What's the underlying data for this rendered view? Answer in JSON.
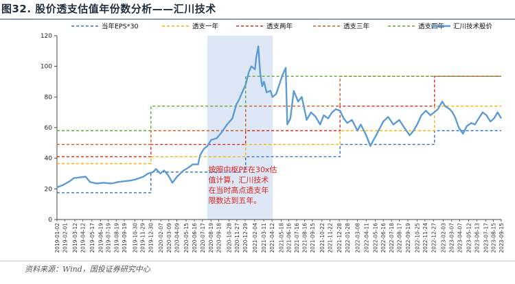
{
  "page": {
    "title": "图32. 股价透支估值年份数分析——汇川技术",
    "source": "资料来源：Wind，国投证券研究中心"
  },
  "chart_data": {
    "type": "line",
    "ylim": [
      0,
      120
    ],
    "yticks": [
      0,
      20,
      40,
      60,
      80,
      100,
      120
    ],
    "xlim": [
      "2019-01-02",
      "2023-09-15"
    ],
    "grid": false,
    "legend_position": "top",
    "xtick_labels": [
      "2019-01-02",
      "2019-02-01",
      "2019-03-12",
      "2019-04-12",
      "2019-05-17",
      "2019-06-19",
      "2019-07-19",
      "2019-08-19",
      "2019-09-19",
      "2019-10-30",
      "2019-11-29",
      "2019-12-30",
      "2020-02-07",
      "2020-03-09",
      "2020-04-09",
      "2020-05-15",
      "2020-06-16",
      "2020-07-17",
      "2020-08-19",
      "2020-09-18",
      "2020-10-28",
      "2020-11-27",
      "2020-12-29",
      "2021-02-04",
      "2021-03-11",
      "2021-04-12",
      "2021-05-18",
      "2021-06-16",
      "2021-07-16",
      "2021-08-16",
      "2021-09-15",
      "2021-10-22",
      "2021-11-22",
      "2021-12-28",
      "2022-01-28",
      "2022-03-08",
      "2022-04-11",
      "2022-05-16",
      "2022-06-16",
      "2022-07-18",
      "2022-08-17",
      "2022-09-19",
      "2022-10-25",
      "2022-11-24",
      "2022-12-27",
      "2023-02-03",
      "2023-03-07",
      "2023-04-07",
      "2023-05-12",
      "2023-06-13",
      "2023-07-17",
      "2023-08-15",
      "2023-09-15"
    ],
    "highlight_region": {
      "start": "2020-08-05",
      "end": "2021-04-15",
      "color": "#dde7f6"
    },
    "annotation": {
      "lines": [
        "按照中枢PE在30x估",
        "值计算，汇川技术",
        "在当时高点透支年",
        "限数达到五年。"
      ],
      "color": "#e0241b"
    },
    "step_series": [
      {
        "name": "当年EPS*30",
        "color": "#2f6fc4",
        "steps": [
          [
            "2019-01-02",
            17.5
          ],
          [
            "2019-12-31",
            17.5
          ],
          [
            "2019-12-31",
            31
          ],
          [
            "2020-12-31",
            31
          ],
          [
            "2020-12-31",
            41
          ],
          [
            "2021-12-31",
            41
          ],
          [
            "2021-12-31",
            49
          ],
          [
            "2022-12-31",
            49
          ],
          [
            "2022-12-31",
            58
          ],
          [
            "2023-09-15",
            58
          ]
        ]
      },
      {
        "name": "透支一年",
        "color": "#f4b400",
        "steps": [
          [
            "2019-01-02",
            36.5
          ],
          [
            "2019-12-31",
            36.5
          ],
          [
            "2019-12-31",
            41
          ],
          [
            "2020-12-31",
            41
          ],
          [
            "2020-12-31",
            49
          ],
          [
            "2021-12-31",
            49
          ],
          [
            "2021-12-31",
            58
          ],
          [
            "2022-12-31",
            58
          ],
          [
            "2022-12-31",
            74
          ],
          [
            "2023-09-15",
            74
          ]
        ]
      },
      {
        "name": "透支两年",
        "color": "#e0241b",
        "steps": [
          [
            "2019-01-02",
            41
          ],
          [
            "2019-12-31",
            41
          ],
          [
            "2019-12-31",
            49
          ],
          [
            "2020-12-31",
            49
          ],
          [
            "2020-12-31",
            58
          ],
          [
            "2021-12-31",
            58
          ],
          [
            "2021-12-31",
            74
          ],
          [
            "2022-12-31",
            74
          ],
          [
            "2022-12-31",
            93.5
          ],
          [
            "2023-09-15",
            93.5
          ]
        ]
      },
      {
        "name": "透支三年",
        "color": "#d4561b",
        "steps": [
          [
            "2019-01-02",
            49
          ],
          [
            "2019-12-31",
            49
          ],
          [
            "2019-12-31",
            58
          ],
          [
            "2020-12-31",
            58
          ],
          [
            "2020-12-31",
            74
          ],
          [
            "2021-12-31",
            74
          ],
          [
            "2021-12-31",
            93.5
          ],
          [
            "2023-09-15",
            93.5
          ]
        ]
      },
      {
        "name": "透支四年",
        "color": "#5aa832",
        "steps": [
          [
            "2019-01-02",
            58
          ],
          [
            "2019-12-31",
            58
          ],
          [
            "2019-12-31",
            74
          ],
          [
            "2020-12-31",
            74
          ],
          [
            "2020-12-31",
            93.5
          ],
          [
            "2023-09-15",
            93.5
          ]
        ]
      }
    ],
    "price_series": {
      "name": "汇川技术股价",
      "color": "#5b9bd5",
      "points": [
        [
          "2019-01-02",
          21
        ],
        [
          "2019-01-25",
          22.5
        ],
        [
          "2019-02-20",
          25
        ],
        [
          "2019-03-08",
          27
        ],
        [
          "2019-04-01",
          27.5
        ],
        [
          "2019-04-22",
          28
        ],
        [
          "2019-05-10",
          24.5
        ],
        [
          "2019-06-05",
          23.5
        ],
        [
          "2019-07-01",
          24
        ],
        [
          "2019-08-01",
          23.5
        ],
        [
          "2019-08-26",
          24.5
        ],
        [
          "2019-09-20",
          25
        ],
        [
          "2019-10-15",
          25.5
        ],
        [
          "2019-11-08",
          26.5
        ],
        [
          "2019-12-02",
          28
        ],
        [
          "2019-12-20",
          30
        ],
        [
          "2020-01-08",
          31
        ],
        [
          "2020-01-20",
          33
        ],
        [
          "2020-02-05",
          30
        ],
        [
          "2020-02-20",
          32
        ],
        [
          "2020-03-06",
          29
        ],
        [
          "2020-03-23",
          24
        ],
        [
          "2020-04-10",
          28
        ],
        [
          "2020-05-05",
          32
        ],
        [
          "2020-05-25",
          34
        ],
        [
          "2020-06-10",
          36
        ],
        [
          "2020-06-30",
          36
        ],
        [
          "2020-07-08",
          42
        ],
        [
          "2020-07-22",
          46
        ],
        [
          "2020-08-05",
          48
        ],
        [
          "2020-08-20",
          52
        ],
        [
          "2020-09-10",
          53
        ],
        [
          "2020-09-30",
          57
        ],
        [
          "2020-10-20",
          62
        ],
        [
          "2020-11-10",
          66
        ],
        [
          "2020-11-25",
          75
        ],
        [
          "2020-12-05",
          78
        ],
        [
          "2020-12-15",
          82
        ],
        [
          "2020-12-31",
          88
        ],
        [
          "2021-01-12",
          96
        ],
        [
          "2021-01-22",
          100
        ],
        [
          "2021-02-05",
          98
        ],
        [
          "2021-02-10",
          106
        ],
        [
          "2021-02-18",
          113
        ],
        [
          "2021-02-25",
          96
        ],
        [
          "2021-03-05",
          87
        ],
        [
          "2021-03-12",
          90
        ],
        [
          "2021-03-22",
          83
        ],
        [
          "2021-04-06",
          84
        ],
        [
          "2021-04-14",
          80
        ],
        [
          "2021-04-28",
          82
        ],
        [
          "2021-05-14",
          90
        ],
        [
          "2021-05-24",
          95
        ],
        [
          "2021-06-04",
          99
        ],
        [
          "2021-06-10",
          62
        ],
        [
          "2021-06-22",
          66
        ],
        [
          "2021-07-05",
          84
        ],
        [
          "2021-07-22",
          77
        ],
        [
          "2021-08-05",
          80
        ],
        [
          "2021-08-24",
          65
        ],
        [
          "2021-09-10",
          70
        ],
        [
          "2021-09-28",
          67
        ],
        [
          "2021-10-15",
          62
        ],
        [
          "2021-10-29",
          68
        ],
        [
          "2021-11-15",
          66
        ],
        [
          "2021-11-30",
          70
        ],
        [
          "2021-12-15",
          72
        ],
        [
          "2021-12-31",
          71
        ],
        [
          "2022-01-14",
          66
        ],
        [
          "2022-01-28",
          63
        ],
        [
          "2022-02-15",
          65
        ],
        [
          "2022-03-08",
          58
        ],
        [
          "2022-03-21",
          62
        ],
        [
          "2022-04-11",
          55
        ],
        [
          "2022-04-27",
          48
        ],
        [
          "2022-05-16",
          54
        ],
        [
          "2022-06-01",
          59
        ],
        [
          "2022-06-16",
          64
        ],
        [
          "2022-07-05",
          67
        ],
        [
          "2022-07-25",
          62
        ],
        [
          "2022-08-17",
          65
        ],
        [
          "2022-09-05",
          60
        ],
        [
          "2022-09-26",
          55
        ],
        [
          "2022-10-11",
          58
        ],
        [
          "2022-10-25",
          62
        ],
        [
          "2022-11-10",
          68
        ],
        [
          "2022-11-28",
          71
        ],
        [
          "2022-12-15",
          68
        ],
        [
          "2022-12-30",
          70
        ],
        [
          "2023-01-13",
          72
        ],
        [
          "2023-01-30",
          77
        ],
        [
          "2023-02-10",
          74
        ],
        [
          "2023-02-28",
          72
        ],
        [
          "2023-03-10",
          70
        ],
        [
          "2023-03-20",
          67
        ],
        [
          "2023-04-04",
          60
        ],
        [
          "2023-04-20",
          56
        ],
        [
          "2023-05-05",
          61
        ],
        [
          "2023-05-22",
          63
        ],
        [
          "2023-06-05",
          62
        ],
        [
          "2023-06-20",
          66
        ],
        [
          "2023-07-05",
          70
        ],
        [
          "2023-07-20",
          68
        ],
        [
          "2023-08-04",
          64
        ],
        [
          "2023-08-18",
          66
        ],
        [
          "2023-09-01",
          70
        ],
        [
          "2023-09-15",
          66
        ]
      ]
    }
  }
}
